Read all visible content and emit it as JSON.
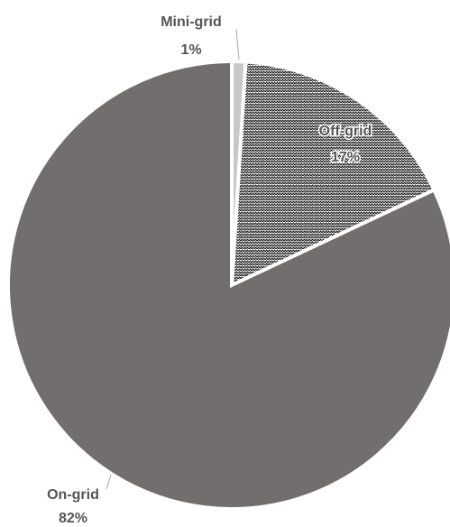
{
  "chart_data": {
    "type": "pie",
    "slices": [
      {
        "label": "Mini-grid",
        "value": 1,
        "value_label": "1%",
        "color": "#c8c8c8",
        "pattern": "none"
      },
      {
        "label": "Off-grid",
        "value": 17,
        "value_label": "17%",
        "color": "#6e6a6a",
        "pattern": "hatch"
      },
      {
        "label": "On-grid",
        "value": 82,
        "value_label": "82%",
        "color": "#726e6d",
        "pattern": "none"
      }
    ],
    "start_angle": "12 o'clock",
    "direction": "clockwise",
    "slice_border_color": "#ffffff",
    "label_color": "#555555",
    "legend": "none"
  }
}
